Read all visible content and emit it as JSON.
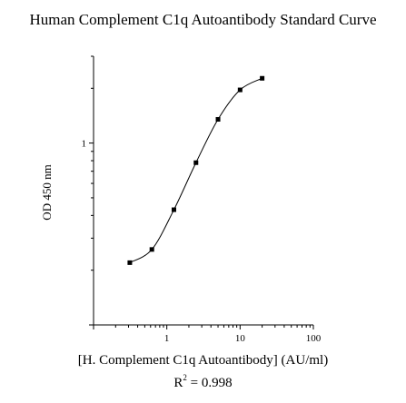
{
  "chart_data": {
    "type": "line",
    "title": "Human Complement C1q Autoantibody Standard Curve",
    "xlabel": "[H. Complement C1q Autoantibody] (AU/ml)",
    "ylabel": "OD 450 nm",
    "x_scale": "log",
    "y_scale": "log",
    "xlim": [
      0.1,
      100
    ],
    "ylim": [
      0.1,
      3
    ],
    "xticks": [
      1,
      10,
      100
    ],
    "xtick_labels": [
      "1",
      "10",
      "100"
    ],
    "yticks": [
      1
    ],
    "ytick_labels": [
      "1"
    ],
    "grid": false,
    "legend": "none",
    "series": [
      {
        "x": [
          0.3125,
          0.625,
          1.25,
          2.5,
          5,
          10,
          20
        ],
        "y": [
          0.22,
          0.26,
          0.43,
          0.78,
          1.35,
          1.96,
          2.27
        ]
      }
    ],
    "annotation": {
      "prefix": "R",
      "sup": "2",
      "suffix": " = 0.998"
    }
  }
}
